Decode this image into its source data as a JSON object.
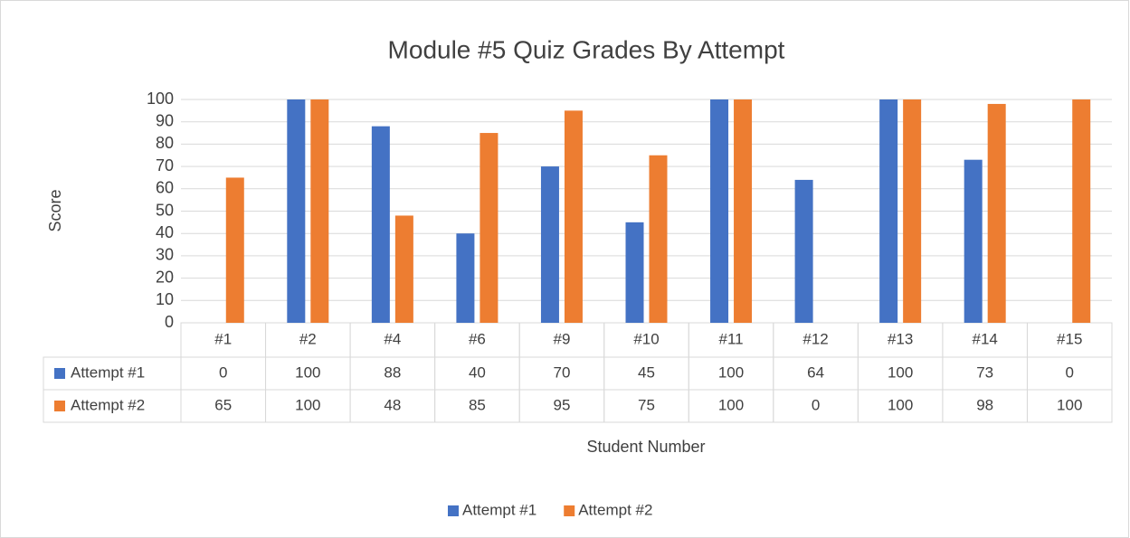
{
  "chart_data": {
    "type": "bar",
    "title": "Module #5 Quiz Grades By Attempt",
    "x_label": "Student Number",
    "y_label": "Score",
    "categories": [
      "#1",
      "#2",
      "#4",
      "#6",
      "#9",
      "#10",
      "#11",
      "#12",
      "#13",
      "#14",
      "#15"
    ],
    "series": [
      {
        "name": "Attempt #1",
        "color": "#4472c4",
        "values": [
          0,
          100,
          88,
          40,
          70,
          45,
          100,
          64,
          100,
          73,
          0
        ]
      },
      {
        "name": "Attempt #2",
        "color": "#ed7d31",
        "values": [
          65,
          100,
          48,
          85,
          95,
          75,
          100,
          0,
          100,
          98,
          100
        ]
      }
    ],
    "ylim": [
      0,
      100
    ],
    "yticks": [
      0,
      10,
      20,
      30,
      40,
      50,
      60,
      70,
      80,
      90,
      100
    ],
    "grid": true,
    "legend": "bottom",
    "data_table": true
  }
}
